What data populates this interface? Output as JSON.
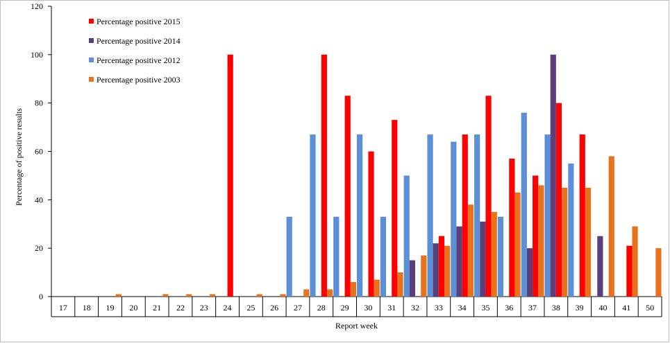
{
  "chart_data": {
    "type": "bar",
    "xlabel": "Report week",
    "ylabel": "Percentage  of positive results",
    "ylim": [
      0,
      120
    ],
    "yticks": [
      0,
      20,
      40,
      60,
      80,
      100,
      120
    ],
    "grid": false,
    "legend_position": "top-left",
    "categories": [
      "17",
      "18",
      "19",
      "20",
      "21",
      "22",
      "23",
      "24",
      "25",
      "26",
      "27",
      "28",
      "29",
      "30",
      "31",
      "32",
      "33",
      "34",
      "35",
      "36",
      "37",
      "38",
      "39",
      "40",
      "41",
      "50"
    ],
    "series": [
      {
        "name": "Percentage positive 2012",
        "color": "#5B8FD6",
        "values": [
          null,
          null,
          null,
          null,
          null,
          null,
          null,
          null,
          null,
          null,
          33,
          67,
          33,
          67,
          33,
          50,
          67,
          64,
          67,
          33,
          76,
          67,
          55,
          null,
          null,
          null
        ]
      },
      {
        "name": "Percentage positive 2014",
        "color": "#5B3F7A",
        "values": [
          null,
          null,
          null,
          null,
          null,
          null,
          null,
          null,
          null,
          null,
          null,
          null,
          null,
          null,
          null,
          15,
          22,
          29,
          31,
          null,
          20,
          100,
          null,
          25,
          null,
          null
        ]
      },
      {
        "name": "Percentage positive 2015",
        "color": "#FF0000",
        "values": [
          null,
          null,
          null,
          null,
          null,
          null,
          null,
          100,
          null,
          null,
          null,
          100,
          83,
          60,
          73,
          null,
          25,
          67,
          83,
          57,
          50,
          80,
          67,
          null,
          21,
          null
        ]
      },
      {
        "name": "Percentage positive 2003",
        "color": "#E8721C",
        "values": [
          null,
          null,
          1,
          null,
          1,
          1,
          1,
          null,
          1,
          1,
          3,
          3,
          6,
          7,
          10,
          17,
          21,
          38,
          35,
          43,
          46,
          45,
          45,
          58,
          29,
          20
        ]
      }
    ],
    "legend_order": [
      2,
      1,
      0,
      3
    ]
  }
}
